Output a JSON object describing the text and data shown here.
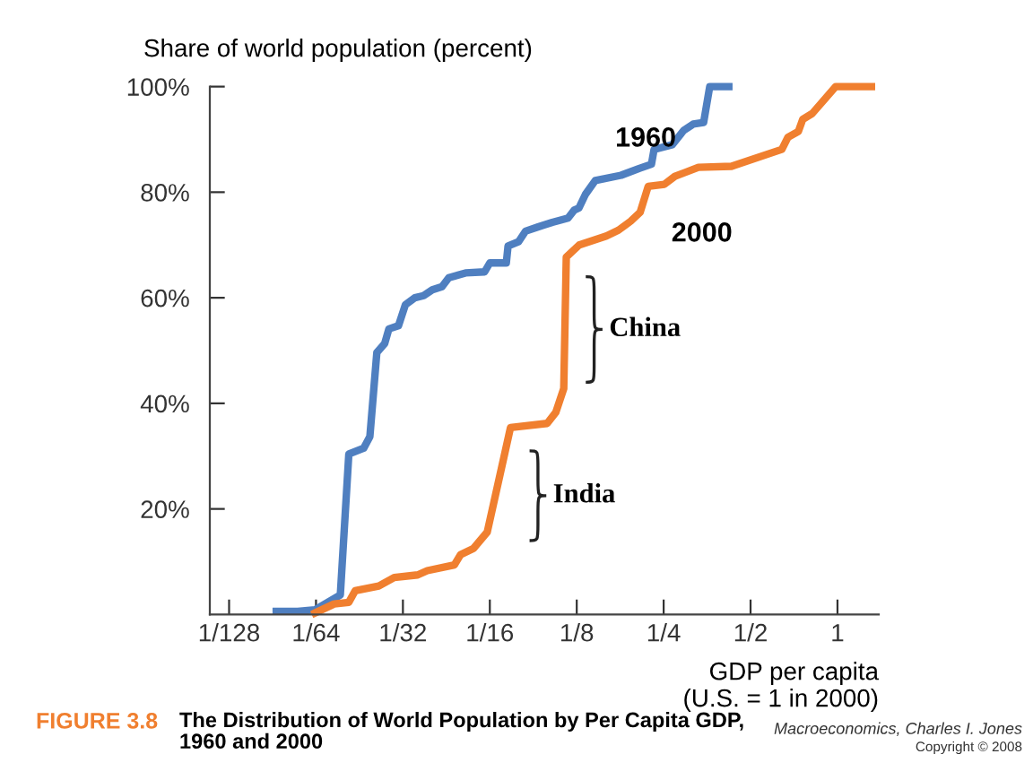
{
  "chart_data": {
    "type": "line",
    "title": "The Distribution of World Population by Per Capita GDP,\n1960 and 2000",
    "ylabel": "Share of world population (percent)",
    "xlabel": "GDP per capita\n(U.S. = 1 in 2000)",
    "log": "x",
    "xlim": [
      0.0067,
      1.39
    ],
    "xticks": [
      {
        "value": 0.0078125,
        "label": "1/128"
      },
      {
        "value": 0.015625,
        "label": "1/64"
      },
      {
        "value": 0.03125,
        "label": "1/32"
      },
      {
        "value": 0.0625,
        "label": "1/16"
      },
      {
        "value": 0.125,
        "label": "1/8"
      },
      {
        "value": 0.25,
        "label": "1/4"
      },
      {
        "value": 0.5,
        "label": "1/2"
      },
      {
        "value": 1,
        "label": "1"
      }
    ],
    "ylim": [
      0,
      100
    ],
    "yticks": [
      {
        "value": 20,
        "label": "20%"
      },
      {
        "value": 40,
        "label": "40%"
      },
      {
        "value": 60,
        "label": "60%"
      },
      {
        "value": 80,
        "label": "80%"
      },
      {
        "value": 100,
        "label": "100%"
      }
    ],
    "grid": false,
    "legend": false,
    "marker": "none",
    "line_style": "solid",
    "series": [
      {
        "name": "1960",
        "color": "#4f7fc0",
        "x": [
          0.01138,
          0.01351,
          0.01551,
          0.01897,
          0.0203,
          0.02285,
          0.02401,
          0.02538,
          0.02701,
          0.02794,
          0.03016,
          0.03188,
          0.03437,
          0.03686,
          0.0395,
          0.04268,
          0.04507,
          0.05149,
          0.05995,
          0.0625,
          0.07128,
          0.07228,
          0.07855,
          0.08304,
          0.09151,
          0.1029,
          0.1166,
          0.1225,
          0.1272,
          0.134,
          0.1449,
          0.178,
          0.2058,
          0.2268,
          0.2316,
          0.2679,
          0.2932,
          0.3164,
          0.3439,
          0.361,
          0.4204
        ],
        "values": [
          0.6,
          0.6,
          0.9,
          3.7,
          30.4,
          31.5,
          33.7,
          49.6,
          51.3,
          54.1,
          54.7,
          58.7,
          60.0,
          60.4,
          61.5,
          62.1,
          63.8,
          64.7,
          64.9,
          66.6,
          66.6,
          69.8,
          70.6,
          72.6,
          73.4,
          74.3,
          75.1,
          76.6,
          77.0,
          79.6,
          82.2,
          83.2,
          84.5,
          85.3,
          88.1,
          89.0,
          91.7,
          92.9,
          93.2,
          100,
          100
        ]
      },
      {
        "name": "2000",
        "color": "#f07f2f",
        "x": [
          0.01551,
          0.01806,
          0.0203,
          0.02135,
          0.02578,
          0.02916,
          0.03516,
          0.03795,
          0.0471,
          0.04944,
          0.05485,
          0.06121,
          0.0737,
          0.09874,
          0.1058,
          0.1127,
          0.115,
          0.1275,
          0.1583,
          0.1743,
          0.1921,
          0.2073,
          0.221,
          0.2516,
          0.2735,
          0.3299,
          0.4293,
          0.6417,
          0.6736,
          0.732,
          0.7579,
          0.8176,
          0.9862,
          1.311
        ],
        "values": [
          0.3,
          2.0,
          2.3,
          4.5,
          5.4,
          7.0,
          7.5,
          8.3,
          9.4,
          11.3,
          12.5,
          15.6,
          35.4,
          36.2,
          38.3,
          42.8,
          67.7,
          70.0,
          71.7,
          72.8,
          74.5,
          76.2,
          81.1,
          81.5,
          83.0,
          84.7,
          84.9,
          88.1,
          90.4,
          91.5,
          93.8,
          94.9,
          100,
          100
        ]
      }
    ],
    "annotations": [
      "FIGURE 3.8",
      "China",
      "India",
      "Macroeconomics, Charles I. Jones",
      "Copyright © 2008"
    ]
  }
}
